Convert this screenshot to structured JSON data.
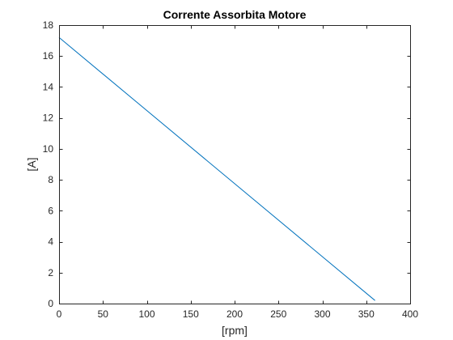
{
  "chart_data": {
    "type": "line",
    "title": "Corrente Assorbita Motore",
    "xlabel": "[rpm]",
    "ylabel": "[A]",
    "xlim": [
      0,
      400
    ],
    "ylim": [
      0,
      18
    ],
    "xticks": [
      0,
      50,
      100,
      150,
      200,
      250,
      300,
      350,
      400
    ],
    "yticks": [
      0,
      2,
      4,
      6,
      8,
      10,
      12,
      14,
      16,
      18
    ],
    "grid": false,
    "series": [
      {
        "color": "#0072bd",
        "x": [
          0,
          360
        ],
        "y": [
          17.2,
          0.2
        ]
      }
    ]
  },
  "colors": {
    "axes": "#262626",
    "background": "#ffffff"
  }
}
